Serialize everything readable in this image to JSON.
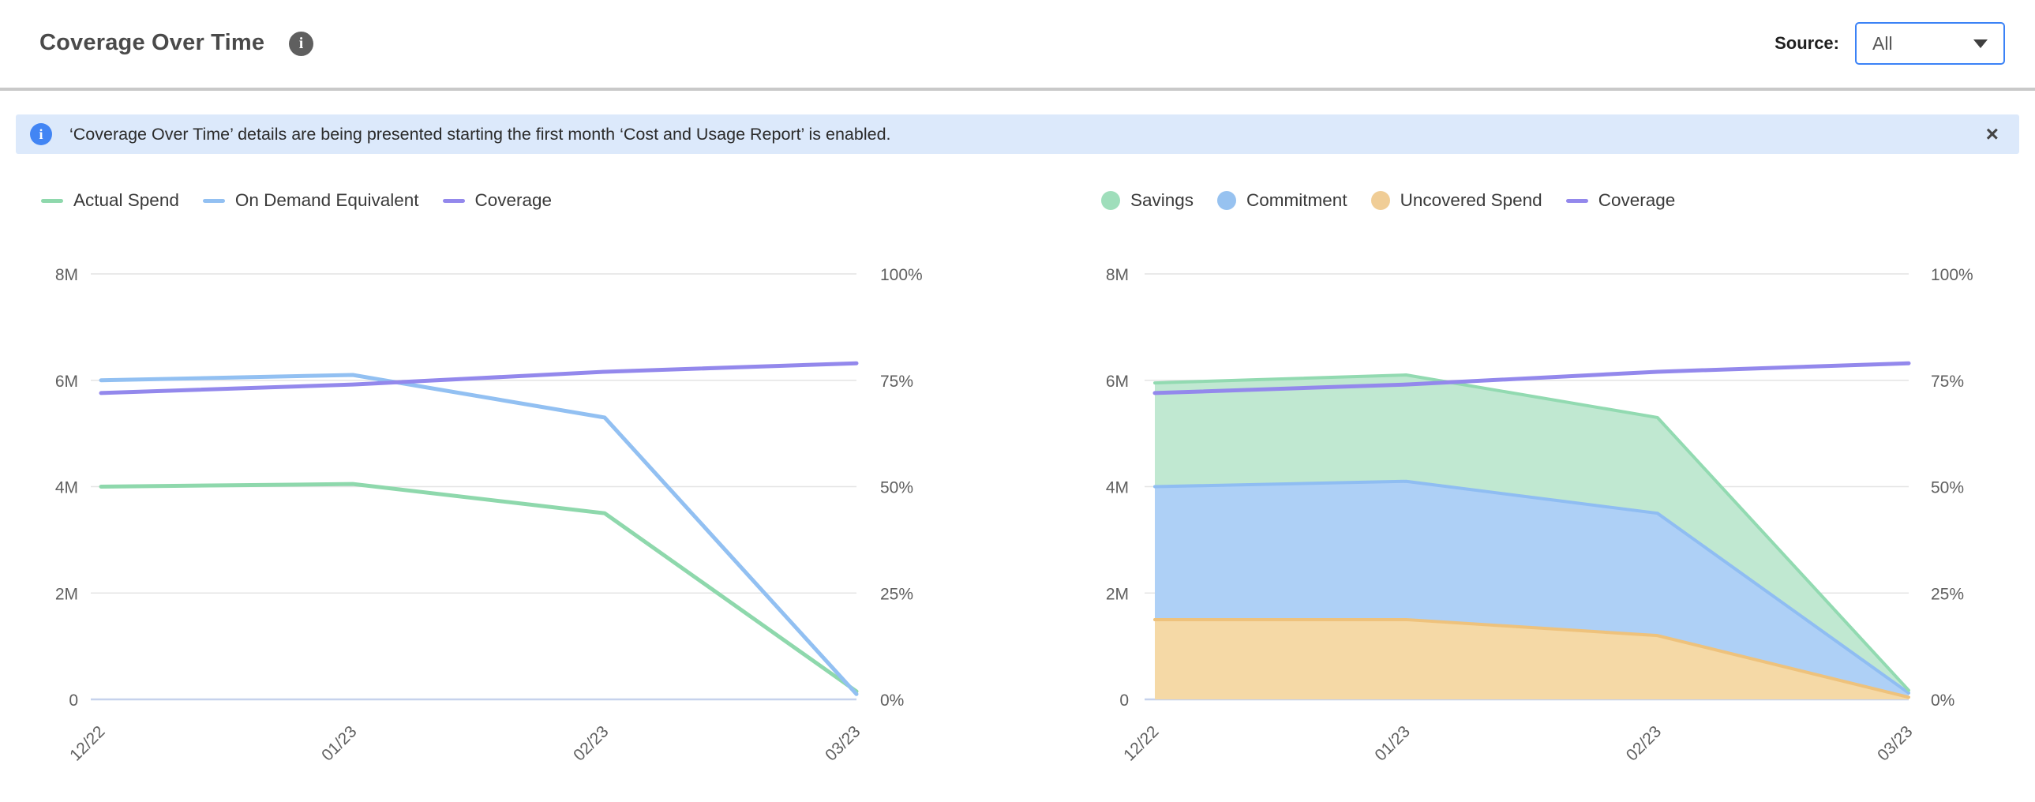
{
  "header": {
    "title": "Coverage Over Time",
    "info_icon": "i",
    "source_label": "Source:",
    "source_value": "All"
  },
  "banner": {
    "icon": "i",
    "text": "‘Coverage Over Time’ details are being presented starting the first month ‘Cost and Usage Report’ is enabled.",
    "close_label": "×"
  },
  "chart_data": [
    {
      "type": "line",
      "title": "Spend vs On Demand Equivalent with Coverage",
      "categories": [
        "12/22",
        "01/23",
        "02/23",
        "03/23"
      ],
      "series": [
        {
          "name": "Actual Spend",
          "axis": "left",
          "color": "#8ed8ac",
          "values": [
            4.0,
            4.05,
            3.5,
            0.15
          ]
        },
        {
          "name": "On Demand Equivalent",
          "axis": "left",
          "color": "#92c0f2",
          "values": [
            6.0,
            6.1,
            5.3,
            0.1
          ]
        },
        {
          "name": "Coverage",
          "axis": "right",
          "color": "#9388ec",
          "values": [
            72,
            74,
            77,
            79
          ]
        }
      ],
      "y_left": {
        "min": 0,
        "max": 8,
        "unit": "M",
        "ticks": [
          "0",
          "2M",
          "4M",
          "6M",
          "8M"
        ]
      },
      "y_right": {
        "min": 0,
        "max": 100,
        "unit": "%",
        "ticks": [
          "0%",
          "25%",
          "50%",
          "75%",
          "100%"
        ]
      },
      "grid": true,
      "legend_position": "top-left",
      "legend": [
        {
          "label": "Actual Spend",
          "swatch": "line",
          "color": "#8ed8ac"
        },
        {
          "label": "On Demand Equivalent",
          "swatch": "line",
          "color": "#92c0f2"
        },
        {
          "label": "Coverage",
          "swatch": "line",
          "color": "#9388ec"
        }
      ]
    },
    {
      "type": "area",
      "stacked": true,
      "title": "Savings / Commitment / Uncovered Spend with Coverage",
      "categories": [
        "12/22",
        "01/23",
        "02/23",
        "03/23"
      ],
      "series": [
        {
          "name": "Uncovered Spend",
          "kind": "area",
          "color": "#eec27c",
          "fill": "#f5d9a6",
          "values": [
            1.5,
            1.5,
            1.2,
            0.04
          ]
        },
        {
          "name": "Commitment",
          "kind": "area",
          "color": "#8fbdf2",
          "fill": "#aed0f6",
          "values": [
            2.5,
            2.6,
            2.3,
            0.08
          ]
        },
        {
          "name": "Savings",
          "kind": "area",
          "color": "#92dab1",
          "fill": "#c0e8d1",
          "values": [
            1.95,
            2.0,
            1.8,
            0.05
          ]
        },
        {
          "name": "Coverage",
          "kind": "line",
          "axis": "right",
          "color": "#9388ec",
          "values": [
            72,
            74,
            77,
            79
          ]
        }
      ],
      "y_left": {
        "min": 0,
        "max": 8,
        "unit": "M",
        "ticks": [
          "0",
          "2M",
          "4M",
          "6M",
          "8M"
        ]
      },
      "y_right": {
        "min": 0,
        "max": 100,
        "unit": "%",
        "ticks": [
          "0%",
          "25%",
          "50%",
          "75%",
          "100%"
        ]
      },
      "grid": true,
      "legend_position": "top-left",
      "legend": [
        {
          "label": "Savings",
          "swatch": "circle",
          "color": "#9fdebb"
        },
        {
          "label": "Commitment",
          "swatch": "circle",
          "color": "#97c2f0"
        },
        {
          "label": "Uncovered Spend",
          "swatch": "circle",
          "color": "#f0cd96"
        },
        {
          "label": "Coverage",
          "swatch": "line",
          "color": "#9388ec"
        }
      ]
    }
  ]
}
